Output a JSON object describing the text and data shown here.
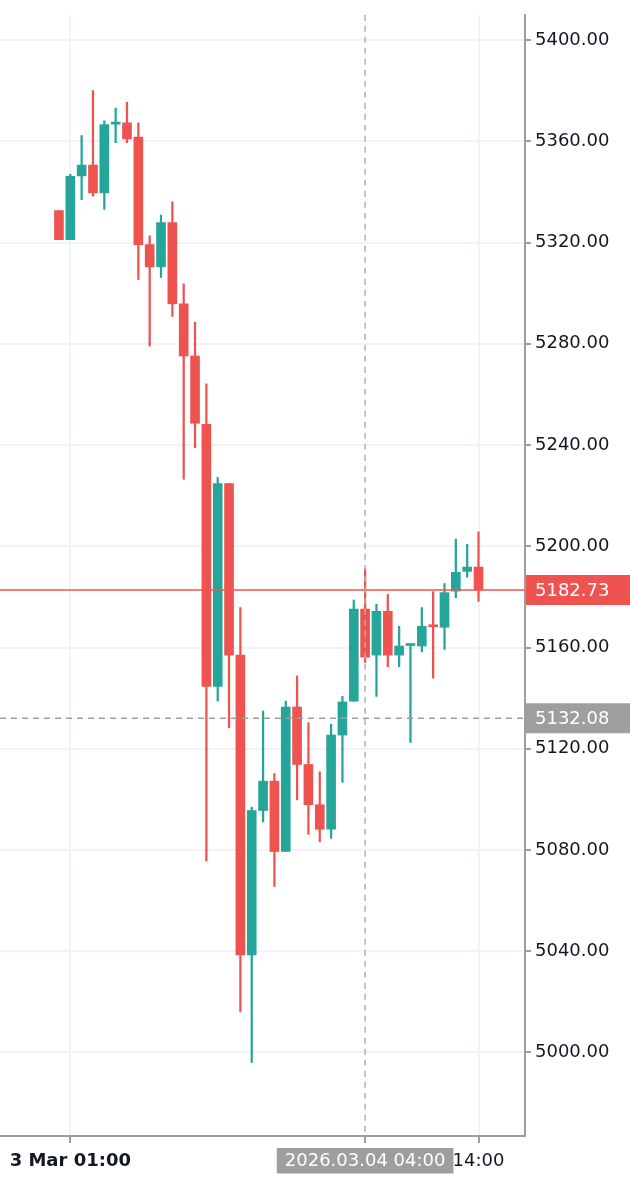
{
  "chart_data": {
    "type": "candlestick",
    "categories": [
      null,
      "3 Mar 01:00",
      null,
      null,
      null,
      null,
      null,
      null,
      null,
      null,
      null,
      null,
      null,
      null,
      null,
      null,
      null,
      null,
      null,
      null,
      null,
      null,
      null,
      null,
      null,
      null,
      null,
      "2026.03.04 04:00",
      null,
      null,
      null,
      null,
      null,
      null,
      null,
      null,
      null,
      "14:00"
    ],
    "ohlc": [
      [
        5332.6,
        5332.6,
        5321.2,
        5321.2
      ],
      [
        5321.2,
        5347.0,
        5321.2,
        5346.2
      ],
      [
        5346.3,
        5362.3,
        5337.0,
        5350.6
      ],
      [
        5350.6,
        5380.1,
        5338.3,
        5339.6
      ],
      [
        5339.6,
        5368.1,
        5333.1,
        5366.6
      ],
      [
        5366.8,
        5373.1,
        5359.5,
        5367.4
      ],
      [
        5367.3,
        5375.4,
        5359.5,
        5361.0
      ],
      [
        5361.7,
        5367.3,
        5305.4,
        5319.2
      ],
      [
        5319.2,
        5322.7,
        5279.1,
        5310.4
      ],
      [
        5310.4,
        5330.9,
        5306.2,
        5327.9
      ],
      [
        5327.9,
        5336.1,
        5290.8,
        5295.8
      ],
      [
        5295.8,
        5303.7,
        5226.5,
        5275.2
      ],
      [
        5275.2,
        5288.5,
        5238.9,
        5248.6
      ],
      [
        5248.2,
        5264.2,
        5075.6,
        5144.6
      ],
      [
        5144.6,
        5227.2,
        5138.8,
        5224.8
      ],
      [
        5224.8,
        5224.8,
        5128.3,
        5157.0
      ],
      [
        5157.0,
        5175.8,
        5016.0,
        5038.5
      ],
      [
        5038.5,
        5097.0,
        4996.1,
        5095.6
      ],
      [
        5095.6,
        5134.9,
        5091.1,
        5107.2
      ],
      [
        5107.2,
        5110.2,
        5065.6,
        5079.4
      ],
      [
        5079.4,
        5138.8,
        5079.4,
        5136.5
      ],
      [
        5136.5,
        5148.8,
        5099.8,
        5113.8
      ],
      [
        5113.8,
        5130.3,
        5086.2,
        5097.9
      ],
      [
        5097.9,
        5110.9,
        5083.2,
        5088.2
      ],
      [
        5088.2,
        5129.7,
        5084.6,
        5125.4
      ],
      [
        5125.4,
        5140.7,
        5106.7,
        5138.5
      ],
      [
        5138.8,
        5178.8,
        5138.8,
        5175.2
      ],
      [
        5175.2,
        5191.2,
        5154.1,
        5156.2
      ],
      [
        5157.0,
        5177.1,
        5140.7,
        5174.3
      ],
      [
        5174.3,
        5181.0,
        5152.4,
        5157.0
      ],
      [
        5157.0,
        5168.4,
        5152.4,
        5160.6
      ],
      [
        5160.8,
        5161.3,
        5122.5,
        5161.3
      ],
      [
        5160.6,
        5175.8,
        5158.3,
        5168.4
      ],
      [
        5168.6,
        5182.1,
        5147.9,
        5168.2
      ],
      [
        5168.0,
        5185.3,
        5159.2,
        5181.7
      ],
      [
        5182.3,
        5202.8,
        5179.7,
        5189.7
      ],
      [
        5190.1,
        5200.8,
        5187.8,
        5191.8
      ],
      [
        5191.8,
        5205.7,
        5178.2,
        5182.73
      ]
    ],
    "colors": [
      "#ef5350",
      "#26a69a",
      "#26a69a",
      "#ef5350",
      "#26a69a",
      "#26a69a",
      "#ef5350",
      "#ef5350",
      "#ef5350",
      "#26a69a",
      "#ef5350",
      "#ef5350",
      "#ef5350",
      "#ef5350",
      "#26a69a",
      "#ef5350",
      "#ef5350",
      "#26a69a",
      "#26a69a",
      "#ef5350",
      "#26a69a",
      "#ef5350",
      "#ef5350",
      "#ef5350",
      "#26a69a",
      "#26a69a",
      "#26a69a",
      "#ef5350",
      "#26a69a",
      "#ef5350",
      "#26a69a",
      "#26a69a",
      "#26a69a",
      "#ef5350",
      "#26a69a",
      "#26a69a",
      "#26a69a",
      "#ef5350"
    ],
    "ylim": [
      4967,
      5410
    ],
    "yticks": [
      {
        "value": 5000,
        "label": "5000.00"
      },
      {
        "value": 5040,
        "label": "5040.00"
      },
      {
        "value": 5080,
        "label": "5080.00"
      },
      {
        "value": 5120,
        "label": "5120.00"
      },
      {
        "value": 5160,
        "label": "5160.00"
      },
      {
        "value": 5200,
        "label": "5200.00"
      },
      {
        "value": 5240,
        "label": "5240.00"
      },
      {
        "value": 5280,
        "label": "5280.00"
      },
      {
        "value": 5320,
        "label": "5320.00"
      },
      {
        "value": 5360,
        "label": "5360.00"
      },
      {
        "value": 5400,
        "label": "5400.00"
      }
    ],
    "ref_lines": [
      {
        "axis": "y",
        "value": 5182.73,
        "label": "5182.73",
        "color": "#ef5350",
        "line_style": "solid"
      },
      {
        "axis": "y",
        "value": 5132.08,
        "label": "5132.08",
        "color": "#9e9e9e",
        "line_style": "dashed"
      },
      {
        "axis": "x",
        "value": "2026.03.04 04:00",
        "label": null,
        "color": "#b0b0b0",
        "line_style": "dashed"
      }
    ],
    "grid": true,
    "legend": false
  }
}
